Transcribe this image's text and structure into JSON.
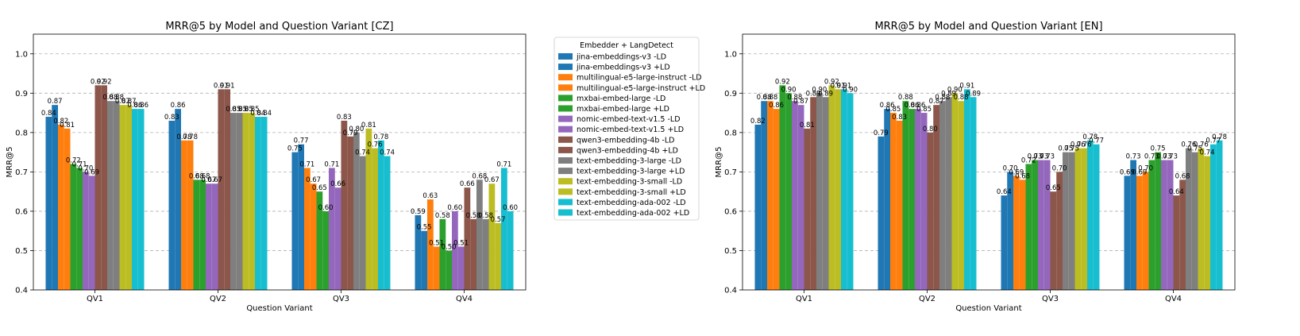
{
  "legend": {
    "title": "Embedder + LangDetect",
    "placement": "center-right-of-first-chart"
  },
  "series_meta": [
    {
      "name": "jina-embeddings-v3 -LD",
      "color": "#1f77b4"
    },
    {
      "name": "jina-embeddings-v3 +LD",
      "color": "#1f77b4"
    },
    {
      "name": "multilingual-e5-large-instruct -LD",
      "color": "#ff7f0e"
    },
    {
      "name": "multilingual-e5-large-instruct +LD",
      "color": "#ff7f0e"
    },
    {
      "name": "mxbai-embed-large -LD",
      "color": "#2ca02c"
    },
    {
      "name": "mxbai-embed-large +LD",
      "color": "#2ca02c"
    },
    {
      "name": "nomic-embed-text-v1.5 -LD",
      "color": "#9467bd"
    },
    {
      "name": "nomic-embed-text-v1.5 +LD",
      "color": "#9467bd"
    },
    {
      "name": "qwen3-embedding-4b -LD",
      "color": "#8c564b"
    },
    {
      "name": "qwen3-embedding-4b +LD",
      "color": "#8c564b"
    },
    {
      "name": "text-embedding-3-large -LD",
      "color": "#7f7f7f"
    },
    {
      "name": "text-embedding-3-large +LD",
      "color": "#7f7f7f"
    },
    {
      "name": "text-embedding-3-small -LD",
      "color": "#bcbd22"
    },
    {
      "name": "text-embedding-3-small +LD",
      "color": "#bcbd22"
    },
    {
      "name": "text-embedding-ada-002 -LD",
      "color": "#17becf"
    },
    {
      "name": "text-embedding-ada-002 +LD",
      "color": "#17becf"
    }
  ],
  "chart_data": [
    {
      "type": "bar",
      "title": "MRR@5 by Model and Question Variant [CZ]",
      "xlabel": "Question Variant",
      "ylabel": "MRR@5",
      "ylim": [
        0.4,
        1.05
      ],
      "yticks": [
        "0.4",
        "0.5",
        "0.6",
        "0.7",
        "0.8",
        "0.9",
        "1.0"
      ],
      "grid": "y-dashed",
      "categories": [
        "QV1",
        "QV2",
        "QV3",
        "QV4"
      ],
      "series": [
        {
          "name": "jina-embeddings-v3 -LD",
          "values": [
            0.84,
            0.83,
            0.75,
            0.59
          ],
          "labels": [
            "0.84",
            "0.83",
            "0.75",
            "0.59"
          ]
        },
        {
          "name": "jina-embeddings-v3 +LD",
          "values": [
            0.87,
            0.86,
            0.77,
            0.55
          ],
          "labels": [
            "0.87",
            "0.86",
            "0.77",
            "0.55"
          ]
        },
        {
          "name": "multilingual-e5-large-instruct -LD",
          "values": [
            0.82,
            0.78,
            0.71,
            0.63
          ],
          "labels": [
            "0.82",
            "0.78",
            "0.71",
            "0.63"
          ]
        },
        {
          "name": "multilingual-e5-large-instruct +LD",
          "values": [
            0.81,
            0.78,
            0.67,
            0.51
          ],
          "labels": [
            "0.81",
            "0.78",
            "0.67",
            "0.51"
          ]
        },
        {
          "name": "mxbai-embed-large -LD",
          "values": [
            0.72,
            0.68,
            0.65,
            0.58
          ],
          "labels": [
            "0.72",
            "0.68",
            "0.65",
            "0.58"
          ]
        },
        {
          "name": "mxbai-embed-large +LD",
          "values": [
            0.71,
            0.68,
            0.6,
            0.5
          ],
          "labels": [
            "0.71",
            "0.68",
            "0.60",
            "0.50"
          ]
        },
        {
          "name": "nomic-embed-text-v1.5 -LD",
          "values": [
            0.7,
            0.67,
            0.71,
            0.6
          ],
          "labels": [
            "0.70",
            "0.67",
            "0.71",
            "0.60"
          ]
        },
        {
          "name": "nomic-embed-text-v1.5 +LD",
          "values": [
            0.69,
            0.67,
            0.66,
            0.51
          ],
          "labels": [
            "0.69",
            "0.67",
            "0.66",
            "0.51"
          ]
        },
        {
          "name": "qwen3-embedding-4b -LD",
          "values": [
            0.92,
            0.91,
            0.83,
            0.66
          ],
          "labels": [
            "0.92",
            "0.91",
            "0.83",
            "0.66"
          ]
        },
        {
          "name": "qwen3-embedding-4b +LD",
          "values": [
            0.92,
            0.91,
            0.79,
            0.58
          ],
          "labels": [
            "0.92",
            "0.91",
            "0.79",
            "0.58"
          ]
        },
        {
          "name": "text-embedding-3-large -LD",
          "values": [
            0.88,
            0.85,
            0.8,
            0.68
          ],
          "labels": [
            "0.88",
            "0.85",
            "0.80",
            "0.68"
          ]
        },
        {
          "name": "text-embedding-3-large +LD",
          "values": [
            0.88,
            0.85,
            0.74,
            0.58
          ],
          "labels": [
            "0.88",
            "0.85",
            "0.74",
            "0.58"
          ]
        },
        {
          "name": "text-embedding-3-small -LD",
          "values": [
            0.87,
            0.85,
            0.81,
            0.67
          ],
          "labels": [
            "0.87",
            "0.85",
            "0.81",
            "0.67"
          ]
        },
        {
          "name": "text-embedding-3-small +LD",
          "values": [
            0.87,
            0.85,
            0.76,
            0.57
          ],
          "labels": [
            "0.87",
            "0.85",
            "0.76",
            "0.57"
          ]
        },
        {
          "name": "text-embedding-ada-002 -LD",
          "values": [
            0.86,
            0.84,
            0.78,
            0.71
          ],
          "labels": [
            "0.86",
            "0.84",
            "0.78",
            "0.71"
          ]
        },
        {
          "name": "text-embedding-ada-002 +LD",
          "values": [
            0.86,
            0.84,
            0.74,
            0.6
          ],
          "labels": [
            "0.86",
            "0.84",
            "0.74",
            "0.60"
          ]
        }
      ]
    },
    {
      "type": "bar",
      "title": "MRR@5 by Model and Question Variant [EN]",
      "xlabel": "Question Variant",
      "ylabel": "MRR@5",
      "ylim": [
        0.4,
        1.05
      ],
      "yticks": [
        "0.4",
        "0.5",
        "0.6",
        "0.7",
        "0.8",
        "0.9",
        "1.0"
      ],
      "grid": "y-dashed",
      "categories": [
        "QV1",
        "QV2",
        "QV3",
        "QV4"
      ],
      "series": [
        {
          "name": "jina-embeddings-v3 -LD",
          "values": [
            0.82,
            0.79,
            0.64,
            0.69
          ],
          "labels": [
            "0.82",
            "0.79",
            "0.64",
            "0.69"
          ]
        },
        {
          "name": "jina-embeddings-v3 +LD",
          "values": [
            0.88,
            0.86,
            0.7,
            0.73
          ],
          "labels": [
            "0.88",
            "0.86",
            "0.70",
            "0.73"
          ]
        },
        {
          "name": "multilingual-e5-large-instruct -LD",
          "values": [
            0.88,
            0.85,
            0.69,
            0.69
          ],
          "labels": [
            "0.88",
            "0.85",
            "0.69",
            "0.69"
          ]
        },
        {
          "name": "multilingual-e5-large-instruct +LD",
          "values": [
            0.86,
            0.83,
            0.68,
            0.7
          ],
          "labels": [
            "0.86",
            "0.83",
            "0.68",
            "0.70"
          ]
        },
        {
          "name": "mxbai-embed-large -LD",
          "values": [
            0.92,
            0.88,
            0.72,
            0.73
          ],
          "labels": [
            "0.92",
            "0.88",
            "0.72",
            "0.73"
          ]
        },
        {
          "name": "mxbai-embed-large +LD",
          "values": [
            0.9,
            0.86,
            0.73,
            0.75
          ],
          "labels": [
            "0.90",
            "0.86",
            "0.73",
            "0.75"
          ]
        },
        {
          "name": "nomic-embed-text-v1.5 -LD",
          "values": [
            0.88,
            0.86,
            0.73,
            0.73
          ],
          "labels": [
            "0.88",
            "0.86",
            "0.73",
            "0.73"
          ]
        },
        {
          "name": "nomic-embed-text-v1.5 +LD",
          "values": [
            0.87,
            0.85,
            0.73,
            0.73
          ],
          "labels": [
            "0.87",
            "0.85",
            "0.73",
            "0.73"
          ]
        },
        {
          "name": "qwen3-embedding-4b -LD",
          "values": [
            0.81,
            0.8,
            0.65,
            0.64
          ],
          "labels": [
            "0.81",
            "0.80",
            "0.65",
            "0.64"
          ]
        },
        {
          "name": "qwen3-embedding-4b +LD",
          "values": [
            0.89,
            0.87,
            0.7,
            0.68
          ],
          "labels": [
            "0.89",
            "0.87",
            "0.70",
            "0.68"
          ]
        },
        {
          "name": "text-embedding-3-large -LD",
          "values": [
            0.9,
            0.88,
            0.75,
            0.76
          ],
          "labels": [
            "0.90",
            "0.88",
            "0.75",
            "0.76"
          ]
        },
        {
          "name": "text-embedding-3-large +LD",
          "values": [
            0.89,
            0.89,
            0.75,
            0.75
          ],
          "labels": [
            "0.89",
            "0.89",
            "0.75",
            "0.75"
          ]
        },
        {
          "name": "text-embedding-3-small -LD",
          "values": [
            0.92,
            0.9,
            0.76,
            0.76
          ],
          "labels": [
            "0.92",
            "0.90",
            "0.76",
            "0.76"
          ]
        },
        {
          "name": "text-embedding-3-small +LD",
          "values": [
            0.91,
            0.88,
            0.76,
            0.74
          ],
          "labels": [
            "0.91",
            "0.88",
            "0.76",
            "0.74"
          ]
        },
        {
          "name": "text-embedding-ada-002 -LD",
          "values": [
            0.91,
            0.91,
            0.78,
            0.77
          ],
          "labels": [
            "0.91",
            "0.91",
            "0.78",
            "0.77"
          ]
        },
        {
          "name": "text-embedding-ada-002 +LD",
          "values": [
            0.9,
            0.89,
            0.77,
            0.78
          ],
          "labels": [
            "0.90",
            "0.89",
            "0.77",
            "0.78"
          ]
        }
      ]
    }
  ]
}
